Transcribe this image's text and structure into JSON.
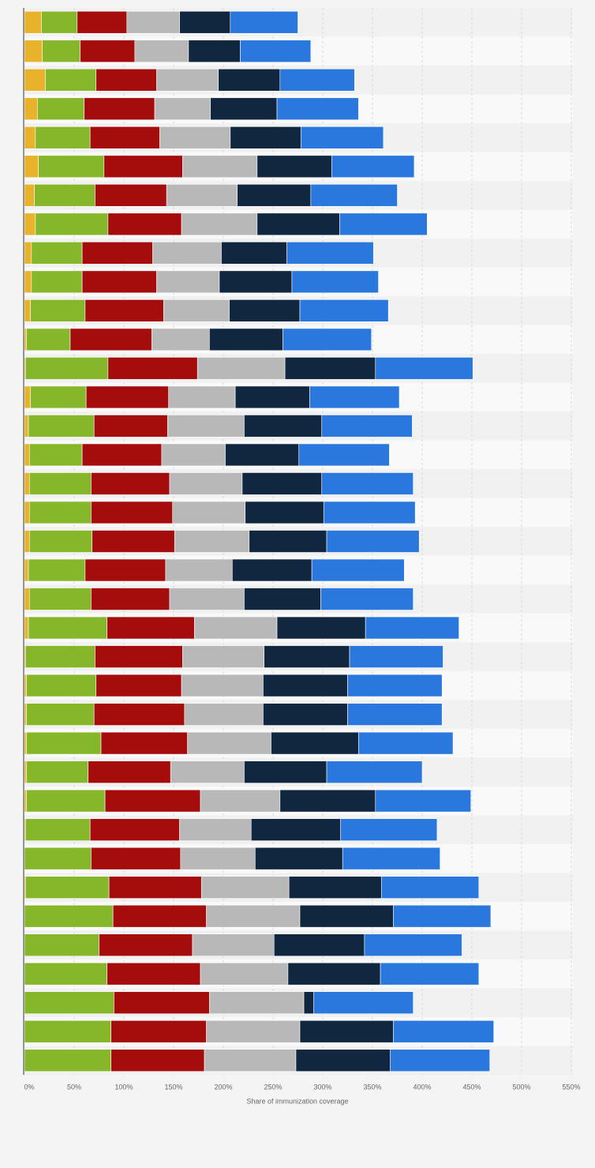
{
  "chart_data": {
    "type": "stacked-bar-horizontal",
    "x_label": "Share of immunization coverage",
    "categories": [
      null,
      null,
      null,
      null,
      null,
      null,
      null,
      null,
      null,
      null,
      null,
      null,
      null,
      null,
      null,
      null,
      null,
      null,
      null,
      null,
      null,
      null,
      null,
      null,
      null,
      null,
      null,
      null,
      null,
      null,
      null,
      null,
      null,
      null,
      null,
      null,
      null
    ],
    "series": [
      {
        "color": "#e8b32a",
        "values": [
          17,
          18,
          21,
          13,
          11,
          14,
          10,
          11,
          7,
          7,
          6,
          2,
          1,
          6,
          4,
          5,
          5,
          5,
          5,
          4,
          5,
          4,
          1,
          2,
          2,
          2,
          2,
          2,
          1,
          0,
          1,
          0,
          0,
          0,
          0,
          0,
          0
        ]
      },
      {
        "color": "#86b72a",
        "values": [
          36,
          38,
          51,
          47,
          55,
          66,
          61,
          73,
          51,
          51,
          55,
          44,
          83,
          56,
          66,
          53,
          62,
          62,
          63,
          57,
          62,
          79,
          70,
          70,
          68,
          75,
          62,
          79,
          65,
          67,
          84,
          89,
          75,
          83,
          90,
          87,
          87
        ]
      },
      {
        "color": "#a50d0d",
        "values": [
          50,
          55,
          61,
          71,
          70,
          79,
          72,
          74,
          71,
          75,
          79,
          82,
          90,
          83,
          74,
          80,
          79,
          82,
          83,
          81,
          79,
          88,
          88,
          86,
          91,
          87,
          83,
          96,
          90,
          90,
          93,
          94,
          94,
          94,
          96,
          96,
          94
        ]
      },
      {
        "color": "#b8b8b8",
        "values": [
          53,
          54,
          62,
          56,
          71,
          75,
          71,
          76,
          69,
          63,
          66,
          58,
          88,
          67,
          77,
          64,
          73,
          73,
          75,
          67,
          75,
          83,
          82,
          82,
          79,
          84,
          74,
          80,
          72,
          75,
          88,
          94,
          82,
          88,
          95,
          94,
          92
        ]
      },
      {
        "color": "#11263f",
        "values": [
          51,
          52,
          62,
          67,
          71,
          75,
          74,
          83,
          66,
          73,
          71,
          74,
          91,
          75,
          78,
          74,
          80,
          79,
          78,
          80,
          77,
          89,
          86,
          85,
          85,
          88,
          83,
          96,
          90,
          88,
          93,
          94,
          91,
          93,
          10,
          94,
          95
        ]
      },
      {
        "color": "#2a78de",
        "values": [
          68,
          71,
          75,
          82,
          83,
          83,
          87,
          88,
          87,
          87,
          89,
          89,
          98,
          90,
          91,
          91,
          92,
          92,
          93,
          93,
          93,
          94,
          94,
          95,
          95,
          95,
          96,
          96,
          97,
          98,
          98,
          98,
          98,
          99,
          100,
          101,
          100
        ]
      }
    ],
    "xlim": [
      0,
      550
    ],
    "xticks": [
      {
        "value": 0,
        "label": "0%"
      },
      {
        "value": 50,
        "label": "50%"
      },
      {
        "value": 100,
        "label": "100%"
      },
      {
        "value": 150,
        "label": "150%"
      },
      {
        "value": 200,
        "label": "200%"
      },
      {
        "value": 250,
        "label": "250%"
      },
      {
        "value": 300,
        "label": "300%"
      },
      {
        "value": 350,
        "label": "350%"
      },
      {
        "value": 400,
        "label": "400%"
      },
      {
        "value": 450,
        "label": "450%"
      },
      {
        "value": 500,
        "label": "500%"
      },
      {
        "value": 550,
        "label": "550%"
      }
    ],
    "grid": true
  }
}
